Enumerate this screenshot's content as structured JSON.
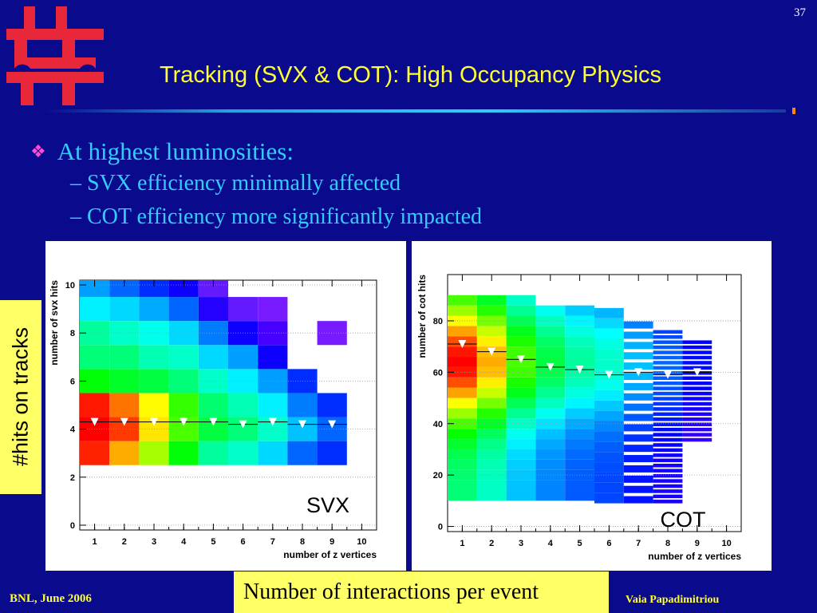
{
  "slide_number": "37",
  "title": "Tracking (SVX & COT): High Occupancy Physics",
  "bullet": {
    "text": "At highest luminosities:",
    "sub_items": [
      "– SVX efficiency minimally affected",
      "– COT efficiency more significantly impacted"
    ]
  },
  "side_label": "#hits on tracks",
  "bottom_label": "Number of interactions per event",
  "footer": {
    "left": "BNL, June 2006",
    "right": "Vaia Papadimitriou"
  },
  "colors": {
    "background": "#0a0a8c",
    "title": "#ffff33",
    "text": "#33ccff",
    "label_box": "#ffff66",
    "bullet_marker": "#ff4ad2"
  },
  "icons": {
    "logo": "fermilab-logo-icon",
    "bullet": "four-diamond-bullet-icon"
  },
  "chart_data": [
    {
      "type": "heatmap",
      "label": "SVX",
      "xlabel": "number of z vertices",
      "ylabel": "number of svx hits",
      "xticks": [
        "1",
        "2",
        "3",
        "4",
        "5",
        "6",
        "7",
        "8",
        "9",
        "10"
      ],
      "yticks": [
        "0",
        "2",
        "4",
        "6",
        "8",
        "10"
      ],
      "xlim": [
        0.5,
        10.5
      ],
      "ylim": [
        -0.2,
        10.2
      ],
      "profile_markers": {
        "x": [
          1,
          2,
          3,
          4,
          5,
          6,
          7,
          8,
          9
        ],
        "y": [
          4.3,
          4.3,
          4.3,
          4.3,
          4.3,
          4.2,
          4.3,
          4.2,
          4.2
        ]
      }
    },
    {
      "type": "heatmap",
      "label": "COT",
      "xlabel": "number of z vertices",
      "ylabel": "number of cot hits",
      "xticks": [
        "1",
        "2",
        "3",
        "4",
        "5",
        "6",
        "7",
        "8",
        "9",
        "10"
      ],
      "yticks": [
        "0",
        "20",
        "40",
        "60",
        "80"
      ],
      "xlim": [
        0.5,
        10.5
      ],
      "ylim": [
        -2,
        98
      ],
      "profile_markers": {
        "x": [
          1,
          2,
          3,
          4,
          5,
          6,
          7,
          8,
          9
        ],
        "y": [
          71,
          68,
          65,
          62,
          61,
          59,
          60,
          59,
          60
        ]
      }
    }
  ]
}
